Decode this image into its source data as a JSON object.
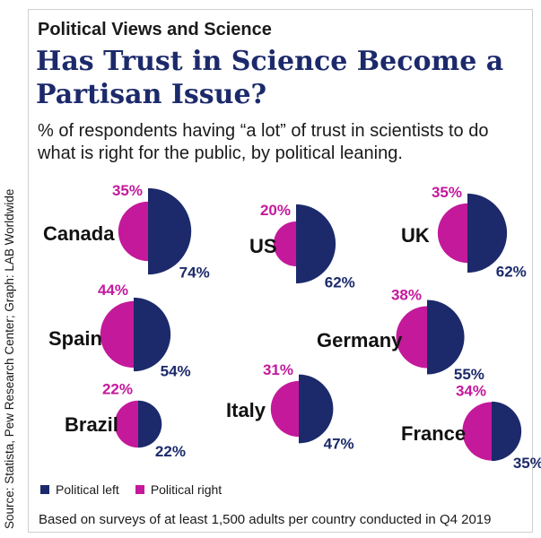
{
  "header": {
    "category": "Political Views and Science",
    "title": "Has Trust in Science Become a Partisan Issue?",
    "subtitle": "% of respondents having “a lot” of trust in scientists to do what is right for the public, by political leaning."
  },
  "legend": {
    "left": "Political left",
    "right": "Political right"
  },
  "source": "Source: Statista, Pew Research Center; Graph: LAB Worldwide",
  "footer": "Based on surveys of at least 1,500 adults per country conducted in  Q4 2019",
  "colors": {
    "left": "#1c2a6b",
    "right": "#c4199b"
  },
  "chart_data": {
    "type": "half-circle comparison",
    "title": "Has Trust in Science Become a Partisan Issue?",
    "unit": "%",
    "series": [
      {
        "name": "Political left",
        "key": "left"
      },
      {
        "name": "Political right",
        "key": "right"
      }
    ],
    "countries": [
      {
        "name": "Canada",
        "left": 74,
        "right": 35,
        "left_label": "74%",
        "right_label": "35%"
      },
      {
        "name": "US",
        "left": 62,
        "right": 20,
        "left_label": "62%",
        "right_label": "20%"
      },
      {
        "name": "UK",
        "left": 62,
        "right": 35,
        "left_label": "62%",
        "right_label": "35%"
      },
      {
        "name": "Spain",
        "left": 54,
        "right": 44,
        "left_label": "54%",
        "right_label": "44%"
      },
      {
        "name": "Germany",
        "left": 55,
        "right": 38,
        "left_label": "55%",
        "right_label": "38%"
      },
      {
        "name": "Brazil",
        "left": 22,
        "right": 22,
        "left_label": "22%",
        "right_label": "22%"
      },
      {
        "name": "Italy",
        "left": 47,
        "right": 31,
        "left_label": "47%",
        "right_label": "31%"
      },
      {
        "name": "France",
        "left": 35,
        "right": 34,
        "left_label": "35%",
        "right_label": "34%"
      }
    ]
  }
}
